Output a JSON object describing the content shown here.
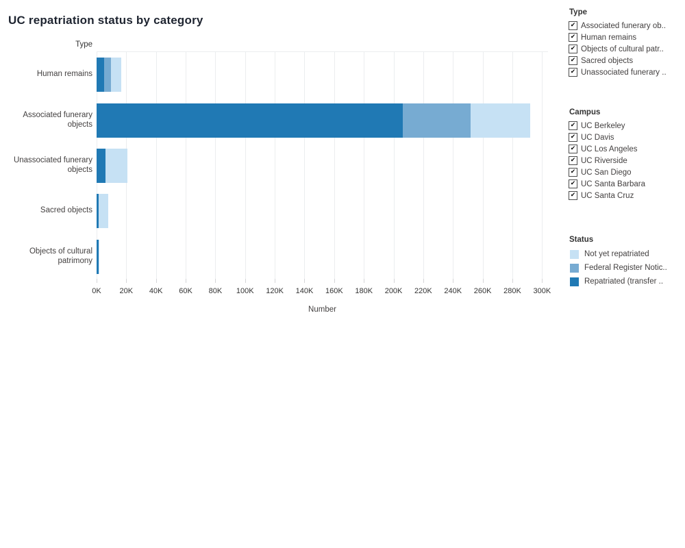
{
  "title": "UC repatriation status by category",
  "chart": {
    "rows_header": "Type",
    "xlabel": "Number",
    "axis": {
      "min": 0,
      "max": 304000,
      "tick_step": 20000
    },
    "ticks": [
      "0K",
      "20K",
      "40K",
      "60K",
      "80K",
      "100K",
      "120K",
      "140K",
      "160K",
      "180K",
      "200K",
      "220K",
      "240K",
      "260K",
      "280K",
      "300K"
    ]
  },
  "chart_data": {
    "type": "bar",
    "orientation": "horizontal",
    "stacked": true,
    "title": "UC repatriation status by category",
    "xlabel": "Number",
    "ylabel": "Type",
    "xlim": [
      0,
      304000
    ],
    "grid": true,
    "legend_position": "right",
    "categories": [
      "Human remains",
      "Associated funerary objects",
      "Unassociated funerary objects",
      "Sacred objects",
      "Objects of cultural patrimony"
    ],
    "series": [
      {
        "name": "Repatriated (transfer ..",
        "color": "#2079B4",
        "values": [
          5000,
          206000,
          5800,
          1200,
          1300
        ]
      },
      {
        "name": "Federal Register Notic..",
        "color": "#77ABD2",
        "values": [
          4800,
          46000,
          0,
          0,
          0
        ]
      },
      {
        "name": "Not yet repatriated",
        "color": "#C6E1F4",
        "values": [
          6700,
          40000,
          14900,
          6600,
          300
        ]
      }
    ]
  },
  "filters": {
    "type": {
      "header": "Type",
      "items": [
        {
          "label": "Associated funerary ob..",
          "checked": true
        },
        {
          "label": "Human remains",
          "checked": true
        },
        {
          "label": "Objects of cultural patr..",
          "checked": true
        },
        {
          "label": "Sacred objects",
          "checked": true
        },
        {
          "label": "Unassociated funerary ..",
          "checked": true
        }
      ]
    },
    "campus": {
      "header": "Campus",
      "items": [
        {
          "label": "UC Berkeley",
          "checked": true
        },
        {
          "label": "UC Davis",
          "checked": true
        },
        {
          "label": "UC Los Angeles",
          "checked": true
        },
        {
          "label": "UC Riverside",
          "checked": true
        },
        {
          "label": "UC San Diego",
          "checked": true
        },
        {
          "label": "UC Santa Barbara",
          "checked": true
        },
        {
          "label": "UC Santa Cruz",
          "checked": true
        }
      ]
    }
  },
  "legend": {
    "header": "Status",
    "items": [
      {
        "label": "Not yet repatriated",
        "color": "#C6E1F4"
      },
      {
        "label": "Federal Register Notic..",
        "color": "#77ABD2"
      },
      {
        "label": "Repatriated (transfer ..",
        "color": "#2079B4"
      }
    ]
  },
  "colors": {
    "dark_blue": "#2079B4",
    "medium_blue": "#77ABD2",
    "light_blue": "#C6E1F4",
    "gridline": "#ebedef"
  }
}
